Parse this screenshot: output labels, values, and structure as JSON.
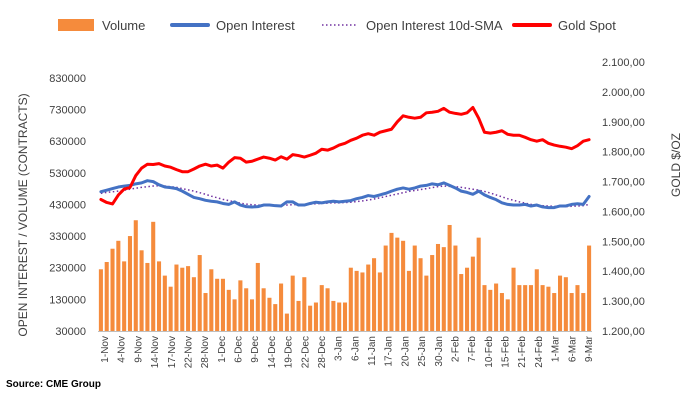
{
  "chart_data": {
    "type": "bar",
    "source": "Source: CME Group",
    "left_axis_label": "OPEN INTEREST / VOLUME (CONTRACTS)",
    "right_axis_label": "GOLD $/OZ",
    "left_ticks": [
      "30000",
      "130000",
      "230000",
      "330000",
      "430000",
      "530000",
      "630000",
      "730000",
      "830000"
    ],
    "left_range": [
      30000,
      880000
    ],
    "right_ticks": [
      "1.200,00",
      "1.300,00",
      "1.400,00",
      "1.500,00",
      "1.600,00",
      "1.700,00",
      "1.800,00",
      "1.900,00",
      "2.000,00",
      "2.100,00"
    ],
    "right_range": [
      1200,
      2100
    ],
    "x_tick_labels": [
      "1-Nov",
      "4-Nov",
      "9-Nov",
      "14-Nov",
      "17-Nov",
      "22-Nov",
      "28-Nov",
      "1-Dec",
      "6-Dec",
      "9-Dec",
      "14-Dec",
      "19-Dec",
      "22-Dec",
      "28-Dec",
      "3-Jan",
      "6-Jan",
      "11-Jan",
      "17-Jan",
      "20-Jan",
      "25-Jan",
      "30-Jan",
      "2-Feb",
      "7-Feb",
      "10-Feb",
      "15-Feb",
      "21-Feb",
      "24-Feb",
      "1-Mar",
      "6-Mar",
      "9-Mar"
    ],
    "legend": [
      {
        "name": "Volume",
        "color": "#f58b3c",
        "style": "bar"
      },
      {
        "name": "Open Interest",
        "color": "#4472c4",
        "style": "line"
      },
      {
        "name": "Open Interest 10d-SMA",
        "color": "#7030a0",
        "style": "dotted"
      },
      {
        "name": "Gold Spot",
        "color": "#ff0000",
        "style": "line"
      }
    ],
    "volume": [
      225000,
      248000,
      290000,
      315000,
      250000,
      330000,
      380000,
      285000,
      245000,
      375000,
      250000,
      205000,
      170000,
      240000,
      230000,
      235000,
      200000,
      270000,
      150000,
      225000,
      195000,
      195000,
      160000,
      130000,
      190000,
      165000,
      130000,
      245000,
      165000,
      135000,
      115000,
      180000,
      85000,
      205000,
      125000,
      200000,
      110000,
      120000,
      175000,
      165000,
      125000,
      120000,
      120000,
      230000,
      220000,
      215000,
      240000,
      260000,
      215000,
      300000,
      340000,
      325000,
      315000,
      220000,
      300000,
      260000,
      205000,
      270000,
      305000,
      295000,
      365000,
      300000,
      210000,
      230000,
      265000,
      325000,
      175000,
      160000,
      180000,
      150000,
      130000,
      230000,
      175000,
      175000,
      175000,
      225000,
      175000,
      170000,
      150000,
      205000,
      200000,
      150000,
      175000,
      150000,
      300000
    ],
    "open_interest": [
      470000,
      475000,
      480000,
      485000,
      488000,
      490000,
      495000,
      498000,
      505000,
      502000,
      492000,
      485000,
      483000,
      480000,
      472000,
      462000,
      452000,
      448000,
      443000,
      440000,
      438000,
      433000,
      430000,
      438000,
      428000,
      423000,
      422000,
      423000,
      428000,
      428000,
      426000,
      425000,
      438000,
      438000,
      428000,
      428000,
      433000,
      437000,
      435000,
      438000,
      440000,
      438000,
      440000,
      442000,
      448000,
      452000,
      458000,
      455000,
      460000,
      465000,
      472000,
      478000,
      482000,
      478000,
      482000,
      488000,
      490000,
      495000,
      492000,
      498000,
      490000,
      482000,
      472000,
      468000,
      462000,
      472000,
      460000,
      452000,
      445000,
      435000,
      430000,
      428000,
      428000,
      430000,
      425000,
      428000,
      422000,
      420000,
      420000,
      425000,
      425000,
      430000,
      432000,
      430000,
      455000
    ],
    "oi_sma": [
      465000,
      468000,
      470000,
      472000,
      475000,
      478000,
      481000,
      484000,
      486000,
      488000,
      489000,
      488000,
      486000,
      484000,
      480000,
      476000,
      472000,
      467000,
      462000,
      456000,
      451000,
      446000,
      442000,
      438000,
      434000,
      431000,
      429000,
      428000,
      427000,
      427000,
      427000,
      427000,
      428000,
      429000,
      430000,
      430000,
      431000,
      432000,
      433000,
      434000,
      435000,
      435000,
      436000,
      437000,
      439000,
      441000,
      444000,
      447000,
      451000,
      455000,
      459000,
      463000,
      467000,
      471000,
      474000,
      477000,
      480000,
      483000,
      486000,
      488000,
      487000,
      486000,
      484000,
      481000,
      478000,
      475000,
      471000,
      466000,
      460000,
      454000,
      448000,
      443000,
      438000,
      434000,
      430000,
      428000,
      426000,
      425000,
      424000,
      423000,
      423000,
      424000,
      425000,
      426000,
      430000
    ],
    "gold_spot": [
      1640,
      1630,
      1625,
      1655,
      1675,
      1680,
      1720,
      1745,
      1758,
      1757,
      1760,
      1752,
      1748,
      1740,
      1733,
      1733,
      1742,
      1752,
      1758,
      1752,
      1755,
      1745,
      1765,
      1780,
      1778,
      1765,
      1768,
      1775,
      1782,
      1778,
      1772,
      1783,
      1775,
      1790,
      1787,
      1782,
      1788,
      1795,
      1808,
      1805,
      1812,
      1822,
      1828,
      1838,
      1845,
      1855,
      1860,
      1855,
      1865,
      1870,
      1875,
      1900,
      1920,
      1915,
      1912,
      1915,
      1930,
      1932,
      1935,
      1945,
      1932,
      1928,
      1925,
      1930,
      1948,
      1912,
      1865,
      1862,
      1865,
      1870,
      1858,
      1855,
      1855,
      1848,
      1840,
      1835,
      1840,
      1828,
      1822,
      1818,
      1815,
      1810,
      1820,
      1835,
      1840
    ]
  }
}
